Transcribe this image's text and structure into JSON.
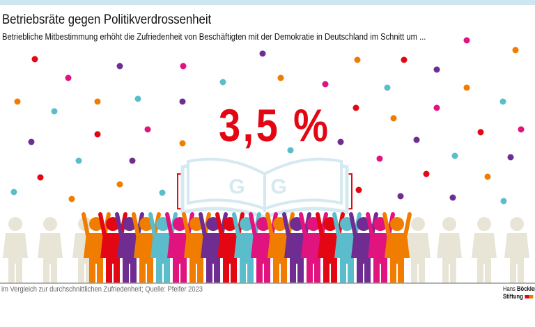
{
  "header": {
    "title": "Betriebsräte gegen Politikverdrossenheit",
    "subtitle": "Betriebliche Mitbestimmung erhöht die Zufriedenheit von Beschäftigten mit der Demokratie in Deutschland im Schnitt um ..."
  },
  "main": {
    "value": "3,5 %",
    "book_letters": [
      "G",
      "G"
    ]
  },
  "footer": {
    "source": "im Vergleich zur durchschnittlichen Zufriedenheit; Quelle: Pfeifer 2023",
    "logo_line1_a": "Hans",
    "logo_line1_b": "Böckler",
    "logo_line2": "Stiftung"
  },
  "colors": {
    "red": "#e30613",
    "magenta": "#e0137f",
    "purple": "#6f2d91",
    "orange": "#f07d00",
    "cyan": "#5bbccc",
    "beige": "#e8e4d6",
    "book": "#d4e9f0"
  }
}
